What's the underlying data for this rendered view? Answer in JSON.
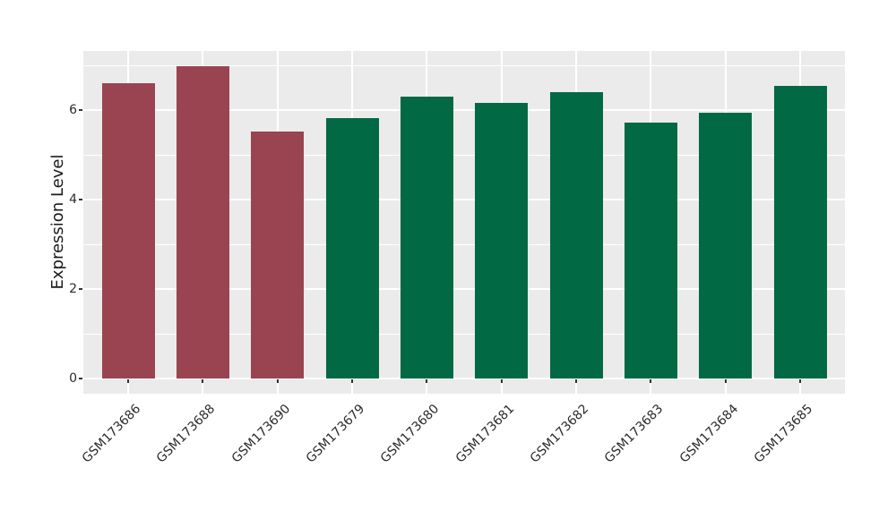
{
  "chart_data": {
    "type": "bar",
    "title": "",
    "xlabel": "",
    "ylabel": "Expression Level",
    "categories": [
      "GSM173686",
      "GSM173688",
      "GSM173690",
      "GSM173679",
      "GSM173680",
      "GSM173681",
      "GSM173682",
      "GSM173683",
      "GSM173684",
      "GSM173685"
    ],
    "values": [
      6.61,
      6.99,
      5.52,
      5.83,
      6.31,
      6.17,
      6.41,
      5.73,
      5.94,
      6.54
    ],
    "bar_colors": [
      "#9A4451",
      "#9A4451",
      "#9A4451",
      "#026945",
      "#026945",
      "#026945",
      "#026945",
      "#026945",
      "#026945",
      "#026945"
    ],
    "groups": [
      {
        "name": "maroon-group",
        "color": "#9A4451",
        "members": [
          "GSM173686",
          "GSM173688",
          "GSM173690"
        ]
      },
      {
        "name": "green-group",
        "color": "#026945",
        "members": [
          "GSM173679",
          "GSM173680",
          "GSM173681",
          "GSM173682",
          "GSM173683",
          "GSM173684",
          "GSM173685"
        ]
      }
    ],
    "y_major_ticks": [
      0,
      2,
      4,
      6
    ],
    "y_minor_ticks": [
      1,
      3,
      5,
      7
    ],
    "ylim": [
      -0.34,
      7.32
    ],
    "grid": true,
    "legend": "none",
    "panel_background": "#EBEBEB",
    "gridline_color": "#FFFFFF",
    "x_tick_rotation_deg": 45
  }
}
